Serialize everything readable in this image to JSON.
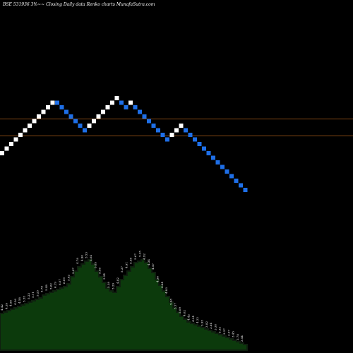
{
  "chart_data": {
    "type": "renko",
    "header": "BSE 531936  3%~~ Closing Daily data  Renko  charts MunafaSutra.com",
    "colors": {
      "background": "#000000",
      "up_brick": "#ffffff",
      "down_brick": "#1e6fe8",
      "reference_line": "#b0601a",
      "volume_fill": "#0c3a0c",
      "volume_top": "#0f1f0f"
    },
    "direction": [
      "up",
      "up",
      "up",
      "up",
      "up",
      "up",
      "up",
      "up",
      "up",
      "up",
      "up",
      "up",
      "down",
      "down",
      "down",
      "down",
      "down",
      "down",
      "down",
      "up",
      "up",
      "up",
      "up",
      "up",
      "up",
      "up",
      "down",
      "down",
      "up",
      "down",
      "down",
      "down",
      "down",
      "down",
      "down",
      "down",
      "down",
      "up",
      "up",
      "up",
      "down",
      "down",
      "down",
      "down",
      "down",
      "down",
      "down",
      "down",
      "down",
      "down",
      "down",
      "down",
      "down",
      "down"
    ],
    "levels": [
      -14,
      -13,
      -12,
      -11,
      -10,
      -9,
      -8,
      -7,
      -6,
      -5,
      -4,
      -3,
      -3,
      -4,
      -5,
      -6,
      -7,
      -8,
      -9,
      -8,
      -7,
      -6,
      -5,
      -4,
      -3,
      -2,
      -3,
      -4,
      -3,
      -4,
      -5,
      -6,
      -7,
      -8,
      -9,
      -10,
      -11,
      -10,
      -9,
      -8,
      -9,
      -10,
      -11,
      -12,
      -13,
      -14,
      -15,
      -16,
      -17,
      -18,
      -19,
      -20,
      -21,
      -22
    ],
    "volume_labels": [
      "4.42",
      "4.39",
      "4.58",
      "4.26",
      "4.58",
      "5.55",
      "5.23",
      "5.11",
      "5.25",
      "5.78",
      "5.48",
      "5.62",
      "6.19",
      "6.07",
      "6.09",
      "5.82",
      "5.47",
      "4.78",
      "4.90",
      "5.53",
      "5.64",
      "5.85",
      "5.58",
      "5.24",
      "5.38",
      "5.29",
      "4.82",
      "5.37",
      "4.91",
      "5.58",
      "5.67",
      "5.35",
      "4.92",
      "4.34",
      "4.47",
      "4.36",
      "4.64",
      "4.83",
      "5.08",
      "5.57",
      "5.09",
      "4.62",
      "4.42",
      "4.34",
      "4.22",
      "3.95",
      "3.82",
      "3.84",
      "3.38",
      "3.32",
      "3.27",
      "3.07",
      "3.45",
      "3.78",
      "3.44"
    ],
    "volume_heights": [
      52,
      54,
      56,
      58,
      60,
      62,
      64,
      66,
      68,
      70,
      72,
      74,
      78,
      80,
      82,
      84,
      86,
      88,
      90,
      94,
      104,
      112,
      118,
      122,
      126,
      128,
      122,
      112,
      104,
      96,
      88,
      84,
      82,
      90,
      100,
      106,
      112,
      118,
      124,
      126,
      128,
      124,
      116,
      110,
      100,
      92,
      84,
      76,
      68,
      60,
      54,
      48,
      44,
      40,
      38,
      36,
      34,
      32,
      30,
      28,
      26,
      24,
      22,
      20,
      18,
      16,
      14,
      12,
      10,
      8
    ]
  }
}
